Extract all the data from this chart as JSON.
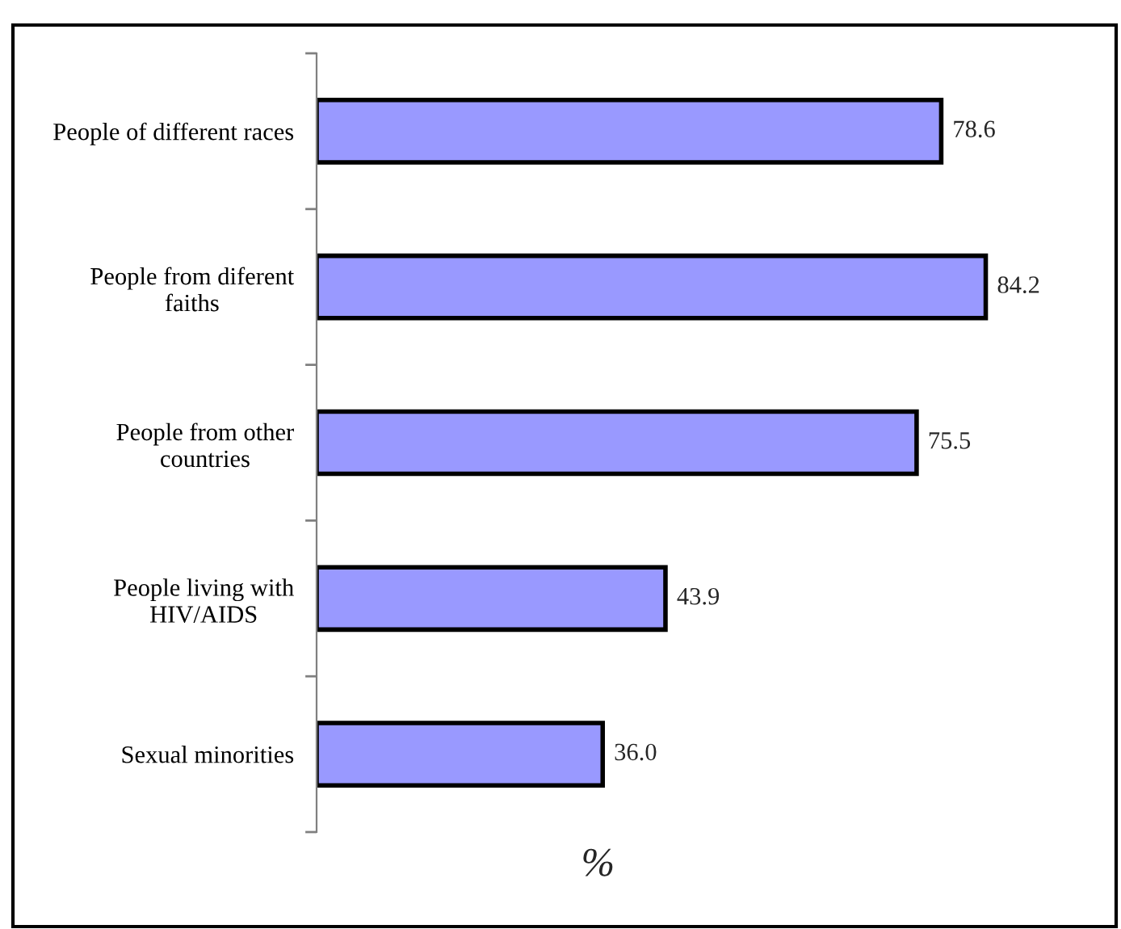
{
  "chart_data": {
    "type": "bar",
    "orientation": "horizontal",
    "xlabel": "%",
    "categories": [
      "People of different races",
      "People from diferent\nfaiths",
      "People from other\ncountries",
      "People living with\nHIV/AIDS",
      "Sexual minorities"
    ],
    "values": [
      78.6,
      84.2,
      75.5,
      43.9,
      36.0
    ],
    "value_labels": [
      "78.6",
      "84.2",
      "75.5",
      "43.9",
      "36.0"
    ],
    "color": "#9999ff",
    "xlim": [
      0,
      100
    ],
    "tick_labels": "y",
    "grid": false
  }
}
